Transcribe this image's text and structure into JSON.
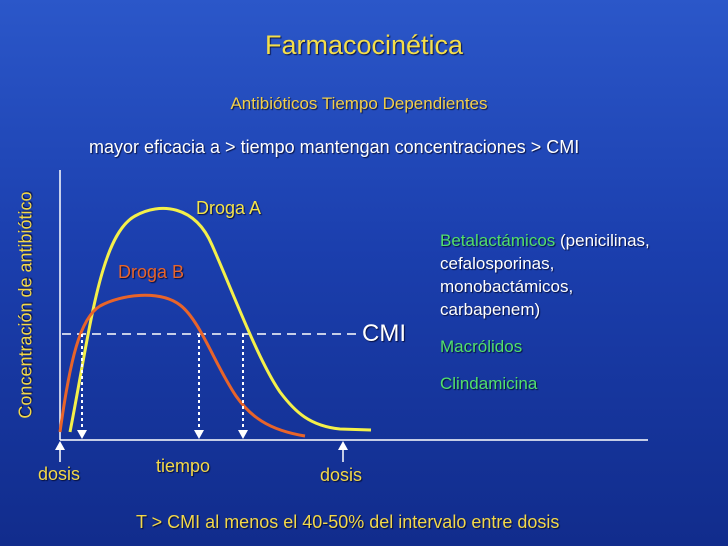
{
  "slide": {
    "title": "Farmacocinética",
    "subtitle": "Antibióticos Tiempo Dependientes",
    "statement": "mayor eficacia a > tiempo mantengan concentraciones > CMI",
    "footnote": "T > CMI al menos el 40-50% del intervalo entre dosis"
  },
  "diagram": {
    "y_axis_label": "Concentración de antibiótico",
    "curve_a_label": "Droga A",
    "curve_b_label": "Droga B",
    "threshold_label": "CMI",
    "dose_label_1": "dosis",
    "time_label": "tiempo",
    "dose_label_2": "dosis"
  },
  "drug_list": {
    "beta_name": "Betalactámicos",
    "beta_detail_1": " (penicilinas,",
    "beta_detail_2": "cefalosporinas,",
    "beta_detail_3": "monobactámicos,",
    "beta_detail_4": "carbapenem)",
    "macrolides": "Macrólidos",
    "clindamycin": "Clindamicina"
  },
  "colors": {
    "background_top": "#2b57c9",
    "background_bottom": "#112c8c",
    "title": "#f4de4a",
    "curve_a": "#f4f04a",
    "curve_b": "#e8642a",
    "highlight_green": "#52e06a",
    "axis": "#ffffff"
  }
}
